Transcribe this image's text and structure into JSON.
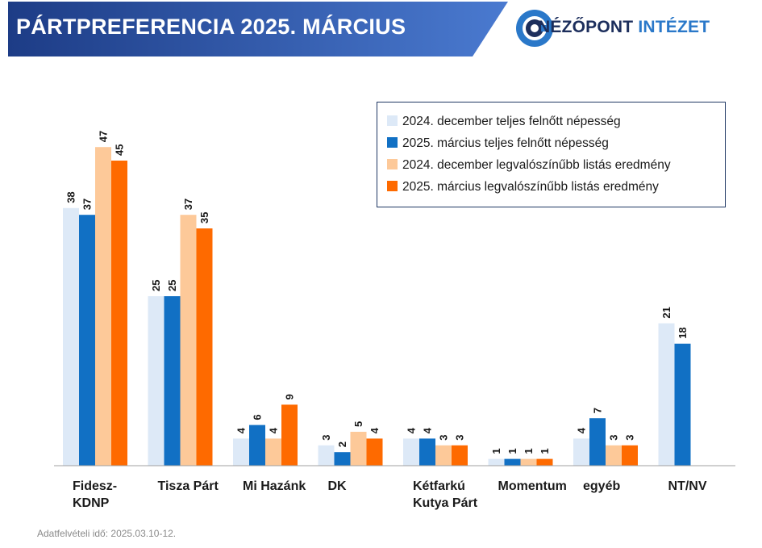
{
  "header": {
    "title": "PÁRTPREFERENCIA 2025. MÁRCIUS",
    "banner_color_start": "#1d3c86",
    "banner_color_end": "#4a7ad0"
  },
  "logo": {
    "word1": "NÉZŐPONT",
    "word2": "INTÉZET",
    "icon": "target-circle-icon"
  },
  "footer": {
    "note": "Adatfelvételi idő: 2025.03.10-12."
  },
  "chart_data": {
    "type": "bar",
    "title": "PÁRTPREFERENCIA 2025. MÁRCIUS",
    "categories": [
      [
        "Fidesz-",
        "KDNP"
      ],
      [
        "Tisza Párt"
      ],
      [
        "Mi Hazánk"
      ],
      [
        "DK"
      ],
      [
        "Kétfarkú",
        "Kutya Párt"
      ],
      [
        "Momentum"
      ],
      [
        "egyéb"
      ],
      [
        "NT/NV"
      ]
    ],
    "series": [
      {
        "name": "2024. december teljes felnőtt népesség",
        "color": "#dde9f7",
        "values": [
          38,
          25,
          4,
          3,
          4,
          1,
          4,
          21
        ]
      },
      {
        "name": "2025. március teljes felnőtt népesség",
        "color": "#1170c4",
        "values": [
          37,
          25,
          6,
          2,
          4,
          1,
          7,
          18
        ]
      },
      {
        "name": "2024. december legvalószínűbb listás eredmény",
        "color": "#fdc999",
        "values": [
          47,
          37,
          4,
          5,
          3,
          1,
          3,
          null
        ]
      },
      {
        "name": "2025. március legvalószínűbb listás eredmény",
        "color": "#fe6a00",
        "values": [
          45,
          35,
          9,
          4,
          3,
          1,
          3,
          null
        ]
      }
    ],
    "ylim": [
      0,
      47
    ],
    "grid": false,
    "legend_position": "top-right",
    "xlabel": "",
    "ylabel": ""
  }
}
